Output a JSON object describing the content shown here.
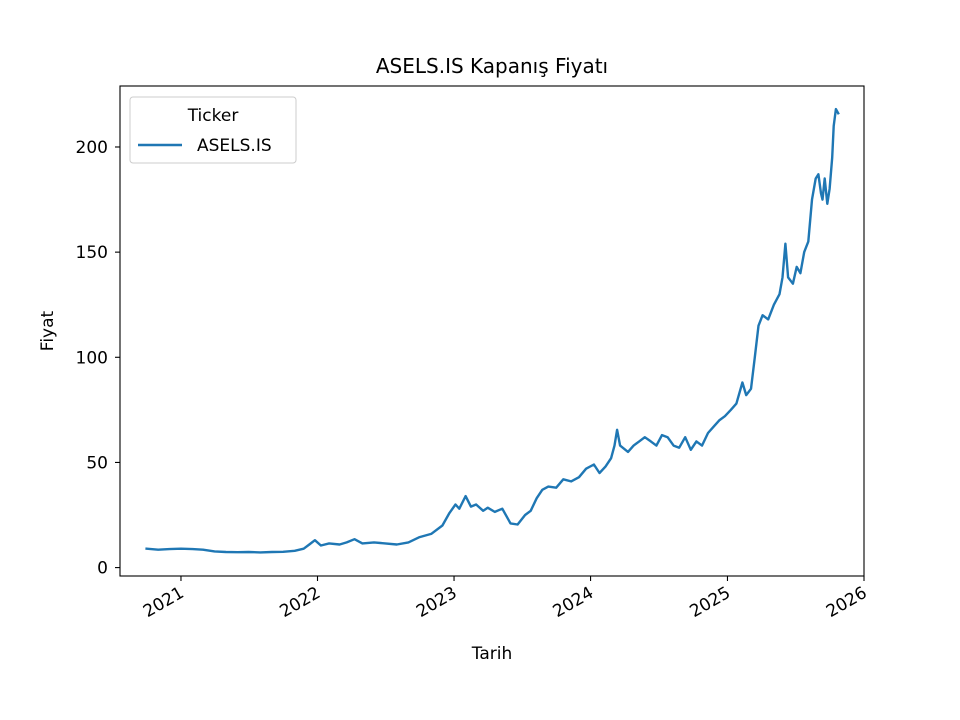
{
  "chart_data": {
    "type": "line",
    "title": "ASELS.IS Kapanış Fiyatı",
    "xlabel": "Tarih",
    "ylabel": "Fiyat",
    "x_ticks": [
      "2021",
      "2022",
      "2023",
      "2024",
      "2025",
      "2026"
    ],
    "y_ticks": [
      0,
      50,
      100,
      150,
      200
    ],
    "xlim": [
      "2020-07-22",
      "2026-01-01"
    ],
    "ylim": [
      -4,
      229
    ],
    "legend": {
      "title": "Ticker",
      "placement": "upper left"
    },
    "grid": false,
    "series": [
      {
        "name": "ASELS.IS",
        "color": "#1f77b4",
        "points": [
          [
            "2020-10-01",
            9.0
          ],
          [
            "2020-11-01",
            8.5
          ],
          [
            "2020-12-01",
            8.8
          ],
          [
            "2021-01-01",
            9.0
          ],
          [
            "2021-02-01",
            8.8
          ],
          [
            "2021-03-01",
            8.5
          ],
          [
            "2021-04-01",
            7.7
          ],
          [
            "2021-05-01",
            7.4
          ],
          [
            "2021-06-01",
            7.3
          ],
          [
            "2021-07-01",
            7.4
          ],
          [
            "2021-08-01",
            7.2
          ],
          [
            "2021-09-01",
            7.4
          ],
          [
            "2021-10-01",
            7.5
          ],
          [
            "2021-11-01",
            8.0
          ],
          [
            "2021-11-25",
            9.0
          ],
          [
            "2021-12-10",
            11.0
          ],
          [
            "2021-12-25",
            13.0
          ],
          [
            "2022-01-10",
            10.5
          ],
          [
            "2022-02-01",
            11.5
          ],
          [
            "2022-03-01",
            11.0
          ],
          [
            "2022-03-20",
            12.0
          ],
          [
            "2022-04-10",
            13.5
          ],
          [
            "2022-05-01",
            11.5
          ],
          [
            "2022-06-01",
            12.0
          ],
          [
            "2022-07-01",
            11.5
          ],
          [
            "2022-08-01",
            11.0
          ],
          [
            "2022-09-01",
            12.0
          ],
          [
            "2022-10-01",
            14.5
          ],
          [
            "2022-11-01",
            16.0
          ],
          [
            "2022-12-01",
            20.0
          ],
          [
            "2022-12-20",
            26.0
          ],
          [
            "2023-01-05",
            30.0
          ],
          [
            "2023-01-15",
            28.0
          ],
          [
            "2023-02-01",
            34.0
          ],
          [
            "2023-02-15",
            29.0
          ],
          [
            "2023-03-01",
            30.0
          ],
          [
            "2023-03-20",
            27.0
          ],
          [
            "2023-04-01",
            28.5
          ],
          [
            "2023-04-20",
            26.5
          ],
          [
            "2023-05-10",
            28.0
          ],
          [
            "2023-06-01",
            21.0
          ],
          [
            "2023-06-20",
            20.5
          ],
          [
            "2023-07-10",
            25.0
          ],
          [
            "2023-07-25",
            27.0
          ],
          [
            "2023-08-10",
            33.0
          ],
          [
            "2023-08-25",
            37.0
          ],
          [
            "2023-09-10",
            38.5
          ],
          [
            "2023-10-01",
            38.0
          ],
          [
            "2023-10-20",
            42.0
          ],
          [
            "2023-11-10",
            41.0
          ],
          [
            "2023-12-01",
            43.0
          ],
          [
            "2023-12-20",
            47.0
          ],
          [
            "2024-01-10",
            49.0
          ],
          [
            "2024-01-25",
            45.0
          ],
          [
            "2024-02-10",
            48.0
          ],
          [
            "2024-02-25",
            52.0
          ],
          [
            "2024-03-05",
            58.0
          ],
          [
            "2024-03-12",
            65.5
          ],
          [
            "2024-03-20",
            58.0
          ],
          [
            "2024-04-10",
            55.0
          ],
          [
            "2024-04-25",
            58.0
          ],
          [
            "2024-05-10",
            60.0
          ],
          [
            "2024-05-25",
            62.0
          ],
          [
            "2024-06-10",
            60.0
          ],
          [
            "2024-06-25",
            58.0
          ],
          [
            "2024-07-10",
            63.0
          ],
          [
            "2024-07-25",
            62.0
          ],
          [
            "2024-08-10",
            58.0
          ],
          [
            "2024-08-25",
            57.0
          ],
          [
            "2024-09-10",
            62.0
          ],
          [
            "2024-09-25",
            56.0
          ],
          [
            "2024-10-10",
            60.0
          ],
          [
            "2024-10-25",
            58.0
          ],
          [
            "2024-11-10",
            64.0
          ],
          [
            "2024-11-25",
            67.0
          ],
          [
            "2024-12-10",
            70.0
          ],
          [
            "2024-12-25",
            72.0
          ],
          [
            "2025-01-10",
            75.0
          ],
          [
            "2025-01-25",
            78.0
          ],
          [
            "2025-02-10",
            88.0
          ],
          [
            "2025-02-20",
            82.0
          ],
          [
            "2025-03-05",
            85.0
          ],
          [
            "2025-03-15",
            100.0
          ],
          [
            "2025-03-25",
            115.0
          ],
          [
            "2025-04-05",
            120.0
          ],
          [
            "2025-04-20",
            118.0
          ],
          [
            "2025-05-05",
            125.0
          ],
          [
            "2025-05-20",
            130.0
          ],
          [
            "2025-05-28",
            138.0
          ],
          [
            "2025-06-05",
            154.0
          ],
          [
            "2025-06-12",
            138.0
          ],
          [
            "2025-06-25",
            135.0
          ],
          [
            "2025-07-05",
            143.0
          ],
          [
            "2025-07-15",
            140.0
          ],
          [
            "2025-07-25",
            150.0
          ],
          [
            "2025-08-05",
            155.0
          ],
          [
            "2025-08-15",
            175.0
          ],
          [
            "2025-08-25",
            185.0
          ],
          [
            "2025-09-01",
            187.0
          ],
          [
            "2025-09-08",
            178.0
          ],
          [
            "2025-09-12",
            175.0
          ],
          [
            "2025-09-18",
            185.0
          ],
          [
            "2025-09-25",
            173.0
          ],
          [
            "2025-10-01",
            180.0
          ],
          [
            "2025-10-08",
            195.0
          ],
          [
            "2025-10-12",
            210.0
          ],
          [
            "2025-10-18",
            218.0
          ],
          [
            "2025-10-24",
            216.0
          ]
        ]
      }
    ]
  }
}
